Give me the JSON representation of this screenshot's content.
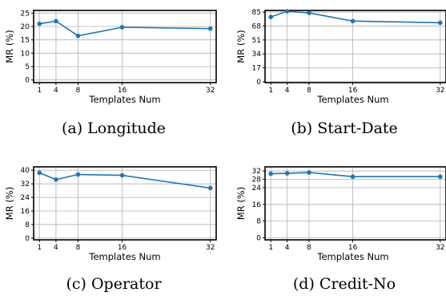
{
  "line_color": "#1f77b4",
  "grid": true,
  "chart_data": [
    {
      "type": "line",
      "caption": "(a)  Longitude",
      "xlabel": "Templates Num",
      "ylabel": "MR (%)",
      "x": [
        1,
        4,
        8,
        16,
        32
      ],
      "y": [
        21,
        22,
        16.5,
        19.7,
        19.2
      ],
      "ylim": [
        -1,
        26
      ],
      "yticks": [
        0,
        5,
        10,
        15,
        20,
        25
      ],
      "xticks": [
        1,
        4,
        8,
        16,
        32
      ]
    },
    {
      "type": "line",
      "caption": "(b)  Start-Date",
      "xlabel": "Templates Num",
      "ylabel": "MR (%)",
      "x": [
        1,
        4,
        8,
        16,
        32
      ],
      "y": [
        79,
        86,
        84,
        74,
        72
      ],
      "ylim": [
        -1,
        87
      ],
      "yticks": [
        0,
        17,
        34,
        51,
        68,
        85
      ],
      "xticks": [
        1,
        4,
        8,
        16,
        32
      ]
    },
    {
      "type": "line",
      "caption": "(c)  Operator",
      "xlabel": "Templates Num",
      "ylabel": "MR (%)",
      "x": [
        1,
        4,
        8,
        16,
        32
      ],
      "y": [
        38.5,
        34.5,
        37.5,
        37,
        29.5
      ],
      "ylim": [
        -1,
        42
      ],
      "yticks": [
        0,
        8,
        16,
        24,
        32,
        40
      ],
      "xticks": [
        1,
        4,
        8,
        16,
        32
      ]
    },
    {
      "type": "line",
      "caption": "(d)  Credit-No",
      "xlabel": "Templates Num",
      "ylabel": "MR (%)",
      "x": [
        1,
        4,
        8,
        16,
        32
      ],
      "y": [
        30.7,
        30.9,
        31.3,
        29.3,
        29.3
      ],
      "ylim": [
        -1,
        34
      ],
      "yticks": [
        0,
        8,
        16,
        24,
        28,
        32
      ],
      "xticks": [
        1,
        4,
        8,
        16,
        32
      ]
    }
  ]
}
